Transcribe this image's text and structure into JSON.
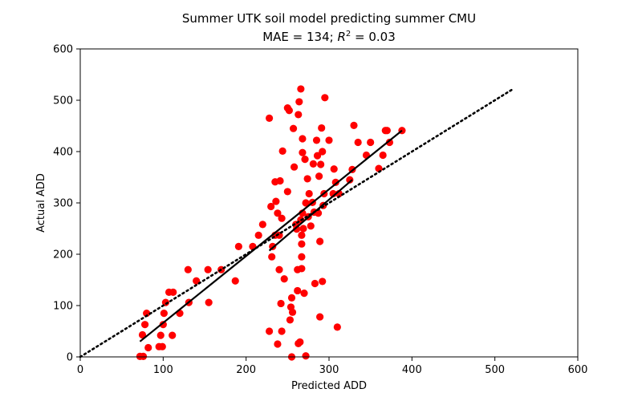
{
  "chart_data": {
    "type": "scatter",
    "title": "Summer UTK soil model predicting summer CMU",
    "subtitle_prefix": "MAE = 134; ",
    "subtitle_r": "R",
    "subtitle_r_sup": "2",
    "subtitle_suffix": " = 0.03",
    "xlabel": "Predicted ADD",
    "ylabel": "Actual ADD",
    "xlim": [
      0,
      600
    ],
    "ylim": [
      0,
      600
    ],
    "xticks": [
      "0",
      "100",
      "200",
      "300",
      "400",
      "500",
      "600"
    ],
    "yticks": [
      "0",
      "100",
      "200",
      "300",
      "400",
      "500",
      "600"
    ],
    "grid": false,
    "point_color": "#ff0000",
    "line_color": "#000000",
    "identity_line": {
      "x": [
        0,
        523
      ],
      "y": [
        0,
        523
      ],
      "style": "dotted"
    },
    "fit_lines": [
      {
        "x": [
          72,
          388
        ],
        "y": [
          30,
          441
        ]
      },
      {
        "x": [
          228,
          328
        ],
        "y": [
          207,
          345
        ]
      }
    ],
    "points": [
      [
        72,
        1
      ],
      [
        76,
        1
      ],
      [
        75,
        43
      ],
      [
        78,
        63
      ],
      [
        80,
        85
      ],
      [
        82,
        18
      ],
      [
        95,
        20
      ],
      [
        97,
        42
      ],
      [
        99,
        20
      ],
      [
        100,
        63
      ],
      [
        101,
        85
      ],
      [
        103,
        106
      ],
      [
        107,
        126
      ],
      [
        112,
        126
      ],
      [
        111,
        42
      ],
      [
        120,
        85
      ],
      [
        130,
        170
      ],
      [
        131,
        106
      ],
      [
        140,
        148
      ],
      [
        154,
        170
      ],
      [
        155,
        106
      ],
      [
        170,
        170
      ],
      [
        187,
        148
      ],
      [
        191,
        215
      ],
      [
        208,
        215
      ],
      [
        215,
        237
      ],
      [
        220,
        258
      ],
      [
        228,
        465
      ],
      [
        230,
        293
      ],
      [
        231,
        195
      ],
      [
        232,
        215
      ],
      [
        235,
        237
      ],
      [
        235,
        341
      ],
      [
        236,
        303
      ],
      [
        238,
        280
      ],
      [
        240,
        237
      ],
      [
        240,
        170
      ],
      [
        241,
        343
      ],
      [
        242,
        104
      ],
      [
        243,
        270
      ],
      [
        244,
        401
      ],
      [
        246,
        152
      ],
      [
        250,
        322
      ],
      [
        250,
        485
      ],
      [
        252,
        480
      ],
      [
        253,
        72
      ],
      [
        254,
        97
      ],
      [
        255,
        115
      ],
      [
        256,
        87
      ],
      [
        257,
        445
      ],
      [
        258,
        370
      ],
      [
        260,
        258
      ],
      [
        261,
        249
      ],
      [
        262,
        129
      ],
      [
        262,
        170
      ],
      [
        263,
        26
      ],
      [
        263,
        472
      ],
      [
        264,
        497
      ],
      [
        265,
        29
      ],
      [
        266,
        522
      ],
      [
        266,
        267
      ],
      [
        267,
        220
      ],
      [
        267,
        195
      ],
      [
        267,
        172
      ],
      [
        267,
        237
      ],
      [
        268,
        425
      ],
      [
        268,
        398
      ],
      [
        268,
        280
      ],
      [
        269,
        250
      ],
      [
        270,
        124
      ],
      [
        271,
        385
      ],
      [
        272,
        2
      ],
      [
        272,
        300
      ],
      [
        274,
        347
      ],
      [
        275,
        273
      ],
      [
        276,
        318
      ],
      [
        278,
        255
      ],
      [
        280,
        301
      ],
      [
        281,
        376
      ],
      [
        282,
        282
      ],
      [
        283,
        143
      ],
      [
        285,
        422
      ],
      [
        286,
        392
      ],
      [
        287,
        280
      ],
      [
        288,
        352
      ],
      [
        289,
        225
      ],
      [
        289,
        78
      ],
      [
        290,
        375
      ],
      [
        291,
        446
      ],
      [
        292,
        400
      ],
      [
        292,
        147
      ],
      [
        293,
        295
      ],
      [
        294,
        318
      ],
      [
        295,
        505
      ],
      [
        300,
        422
      ],
      [
        305,
        318
      ],
      [
        306,
        366
      ],
      [
        308,
        340
      ],
      [
        310,
        58
      ],
      [
        312,
        318
      ],
      [
        325,
        345
      ],
      [
        328,
        365
      ],
      [
        330,
        451
      ],
      [
        335,
        418
      ],
      [
        345,
        393
      ],
      [
        350,
        418
      ],
      [
        360,
        367
      ],
      [
        365,
        393
      ],
      [
        368,
        441
      ],
      [
        370,
        441
      ],
      [
        373,
        418
      ],
      [
        388,
        441
      ],
      [
        228,
        50
      ],
      [
        238,
        25
      ],
      [
        243,
        50
      ],
      [
        255,
        0
      ]
    ]
  }
}
